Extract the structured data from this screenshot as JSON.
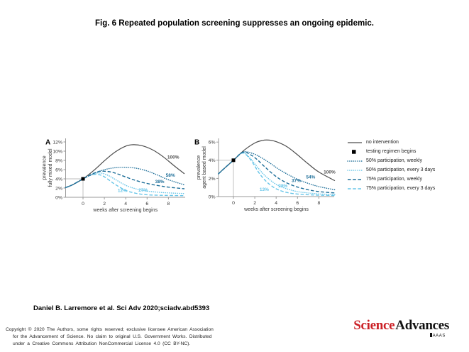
{
  "title": "Fig. 6 Repeated population screening suppresses  an ongoing epidemic.",
  "attribution": "Daniel B. Larremore et al. Sci Adv 2020;sciadv.abd5393",
  "footer": {
    "copyright_lines": [
      "Copyright © 2020 The Authors, some rights reserved; exclusive licensee American Association",
      "for the Advancement of Science. No claim to original U.S. Government Works. Distributed",
      "under a Creative Commons Attribution NonCommercial License 4.0 (CC BY-NC)."
    ],
    "logo": {
      "science": "Science",
      "advances": "Advances",
      "aaas": "AAAS"
    }
  },
  "colors": {
    "no_intervention": "#4d4d4d",
    "dark_blue": "#1f6f99",
    "light_blue": "#67c5e8",
    "axis": "#999999",
    "reference": "#bbbbbb",
    "marker": "#000000",
    "logo_red": "#cb2026"
  },
  "legend": {
    "items": [
      {
        "label": "no intervention",
        "style": "solid",
        "color_key": "no_intervention"
      },
      {
        "label": "testing regimen begins",
        "style": "square",
        "color_key": "marker"
      },
      {
        "label": "50% participation, weekly",
        "style": "dotted",
        "color_key": "dark_blue"
      },
      {
        "label": "50% participation, every 3 days",
        "style": "dotted",
        "color_key": "light_blue"
      },
      {
        "label": "75% participation, weekly",
        "style": "dashed",
        "color_key": "dark_blue"
      },
      {
        "label": "75% participation, every 3 days",
        "style": "dashed",
        "color_key": "light_blue"
      }
    ]
  },
  "chart_data": [
    {
      "type": "line",
      "panel_label": "A",
      "ylabel": [
        "prevalence",
        "fully mixed model"
      ],
      "xlabel": "weeks after screening begins",
      "xlim": [
        -1.65,
        9.5
      ],
      "ylim": [
        0,
        12
      ],
      "xticks": [
        0,
        2,
        4,
        6,
        8
      ],
      "ytick_values": [
        0,
        2,
        4,
        6,
        8,
        10,
        12
      ],
      "ytick_labels": [
        "0%",
        "2%",
        "4%",
        "6%",
        "8%",
        "10%",
        "12%"
      ],
      "marker": {
        "x": 0,
        "y": 4
      },
      "series": [
        {
          "name": "no intervention",
          "style": "solid",
          "color_key": "no_intervention",
          "end_label": "100%",
          "label_x": 7.9,
          "label_y": 8.4,
          "x": [
            -1.65,
            -1,
            0,
            1,
            2,
            3,
            4,
            4.7,
            5.5,
            6.5,
            7.5,
            8.5,
            9.5
          ],
          "y": [
            2.1,
            2.7,
            4.0,
            5.8,
            7.9,
            9.8,
            11.1,
            11.4,
            11.2,
            10.3,
            8.8,
            6.9,
            5.1
          ]
        },
        {
          "name": "50% participation, every 3 days",
          "style": "dotted",
          "color_key": "light_blue",
          "end_label": "27%",
          "label_x": 5.2,
          "label_y": 1.2,
          "x": [
            -1.65,
            -1,
            0,
            0.7,
            1.3,
            1.8,
            2.4,
            3,
            4,
            5,
            6,
            7,
            8,
            9.5
          ],
          "y": [
            2.1,
            2.7,
            4.0,
            4.85,
            5.25,
            5.2,
            4.7,
            3.9,
            2.6,
            1.8,
            1.35,
            1.1,
            0.95,
            0.8
          ]
        },
        {
          "name": "75% participation, every 3 days",
          "style": "dashed",
          "color_key": "light_blue",
          "end_label": "12%",
          "label_x": 3.25,
          "label_y": 1.15,
          "x": [
            -1.65,
            -1,
            0,
            0.6,
            1.2,
            1.8,
            2.4,
            3,
            4,
            5,
            6,
            7,
            8,
            9.5
          ],
          "y": [
            2.1,
            2.7,
            4.0,
            4.7,
            5.0,
            4.7,
            3.8,
            2.8,
            1.5,
            0.85,
            0.55,
            0.45,
            0.4,
            0.35
          ]
        },
        {
          "name": "50% participation, weekly",
          "style": "dotted",
          "color_key": "dark_blue",
          "end_label": "58%",
          "label_x": 7.75,
          "label_y": 4.5,
          "x": [
            -1.65,
            -1,
            0,
            0.8,
            1.6,
            2.4,
            3.2,
            4,
            5,
            6,
            7,
            8,
            9.5
          ],
          "y": [
            2.1,
            2.7,
            4.0,
            4.9,
            5.7,
            6.2,
            6.45,
            6.5,
            6.3,
            5.7,
            4.8,
            3.8,
            2.7
          ]
        },
        {
          "name": "75% participation, weekly",
          "style": "dashed",
          "color_key": "dark_blue",
          "end_label": "38%",
          "label_x": 6.75,
          "label_y": 3.1,
          "x": [
            -1.65,
            -1,
            0,
            0.8,
            1.5,
            2,
            2.6,
            3.2,
            4,
            5,
            6,
            7,
            8,
            9.5
          ],
          "y": [
            2.1,
            2.7,
            4.0,
            5.0,
            5.6,
            5.65,
            5.5,
            5.1,
            4.4,
            3.6,
            3.0,
            2.55,
            2.2,
            1.85
          ]
        }
      ]
    },
    {
      "type": "line",
      "panel_label": "B",
      "ylabel": [
        "prevalence",
        "agent based model"
      ],
      "xlabel": "weeks after screening begins",
      "xlim": [
        -1.4,
        9.5
      ],
      "ylim": [
        0,
        6
      ],
      "xticks": [
        0,
        2,
        4,
        6,
        8
      ],
      "ytick_values": [
        0,
        2,
        4,
        6
      ],
      "ytick_labels": [
        "0%",
        "2%",
        "4%",
        "6%"
      ],
      "marker": {
        "x": 0,
        "y": 4
      },
      "series": [
        {
          "name": "no intervention",
          "style": "solid",
          "color_key": "no_intervention",
          "end_label": "100%",
          "label_x": 8.45,
          "label_y": 2.55,
          "x": [
            -1.4,
            -1,
            0,
            1,
            2,
            2.7,
            3.3,
            4,
            5,
            6,
            7,
            8,
            9.5
          ],
          "y": [
            2.5,
            2.95,
            4.0,
            5.1,
            5.9,
            6.18,
            6.22,
            6.05,
            5.5,
            4.6,
            3.6,
            2.7,
            1.75
          ]
        },
        {
          "name": "50% participation, every 3 days",
          "style": "dotted",
          "color_key": "light_blue",
          "end_label": "28%",
          "label_x": 4.2,
          "label_y": 1.0,
          "x": [
            -1.4,
            -1,
            0,
            0.85,
            1.5,
            2,
            2.6,
            3.2,
            4,
            5,
            6,
            7,
            8,
            9.5
          ],
          "y": [
            2.5,
            2.95,
            4.0,
            4.85,
            4.3,
            3.6,
            2.75,
            2.05,
            1.35,
            0.85,
            0.55,
            0.4,
            0.3,
            0.22
          ]
        },
        {
          "name": "75% participation, every 3 days",
          "style": "dashed",
          "color_key": "light_blue",
          "end_label": "13%",
          "label_x": 2.45,
          "label_y": 0.62,
          "x": [
            -1.4,
            -1,
            0,
            0.85,
            1.4,
            1.9,
            2.4,
            3,
            3.6,
            4.2,
            5,
            6,
            7,
            8,
            9.5
          ],
          "y": [
            2.5,
            2.95,
            4.0,
            4.8,
            4.35,
            3.55,
            2.6,
            1.75,
            1.15,
            0.75,
            0.45,
            0.28,
            0.2,
            0.16,
            0.12
          ]
        },
        {
          "name": "50% participation, weekly",
          "style": "dotted",
          "color_key": "dark_blue",
          "end_label": "54%",
          "label_x": 6.8,
          "label_y": 2.0,
          "x": [
            -1.4,
            -1,
            0,
            0.9,
            1.8,
            2.6,
            3.4,
            4.2,
            5,
            6,
            7,
            8,
            9.5
          ],
          "y": [
            2.5,
            2.95,
            4.0,
            4.9,
            4.75,
            4.3,
            3.7,
            3.05,
            2.5,
            1.9,
            1.45,
            1.1,
            0.75
          ]
        },
        {
          "name": "75% participation, weekly",
          "style": "dashed",
          "color_key": "dark_blue",
          "end_label": "37%",
          "label_x": 5.45,
          "label_y": 1.62,
          "x": [
            -1.4,
            -1,
            0,
            0.9,
            1.6,
            2.2,
            3,
            4,
            5,
            6,
            7,
            8,
            9.5
          ],
          "y": [
            2.5,
            2.95,
            4.0,
            4.9,
            4.6,
            4.1,
            3.2,
            2.2,
            1.5,
            1.05,
            0.75,
            0.55,
            0.4
          ]
        }
      ]
    }
  ]
}
